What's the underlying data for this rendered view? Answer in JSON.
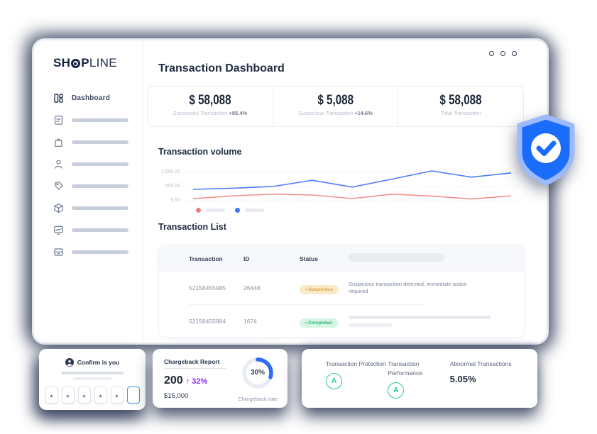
{
  "window": {
    "title": "Transaction Dashboard"
  },
  "sidebar": {
    "logo": {
      "part1": "SH",
      "part2": "P",
      "part3": "LINE"
    },
    "active_item": {
      "label": "Dashboard"
    },
    "placeholder_count": 7
  },
  "stats": [
    {
      "value": "$ 58,088",
      "label": "Successful Transaction",
      "delta": "+85.4%"
    },
    {
      "value": "$ 5,088",
      "label": "Suspicious Transaction",
      "delta": "+14.6%"
    },
    {
      "value": "$ 58,088",
      "label": "Total Transaction",
      "delta": ""
    }
  ],
  "chart_section": {
    "title": "Transaction volume"
  },
  "chart_data": {
    "type": "line",
    "title": "Transaction volume",
    "x": [
      1,
      2,
      3,
      4,
      5,
      6,
      7,
      8,
      9
    ],
    "series": [
      {
        "name": "series-blue",
        "color": "#4e7df7",
        "values": [
          400,
          440,
          500,
          720,
          480,
          760,
          1050,
          830,
          980
        ]
      },
      {
        "name": "series-red",
        "color": "#f2918e",
        "values": [
          70,
          170,
          230,
          200,
          75,
          230,
          165,
          60,
          170
        ]
      }
    ],
    "yticks": [
      "1,000.00",
      "500.00",
      "0.00"
    ],
    "ytick_values": [
      1000,
      500,
      0
    ],
    "ylim": [
      0,
      1100
    ],
    "grid": "dashed-horizontal",
    "legend_position": "bottom-left",
    "legend_labels_placeholder": true
  },
  "table": {
    "title": "Transaction List",
    "columns": [
      "Transaction",
      "ID",
      "Status"
    ],
    "rows": [
      {
        "transaction": "52158455985",
        "id": "26448",
        "status": "• Suspicious",
        "note": "Suspicious transaction detected, immediate action required"
      },
      {
        "transaction": "52158455984",
        "id": "1674",
        "status": "• Completed",
        "note": ""
      }
    ]
  },
  "shield": {
    "meaning": "verified-protection",
    "color": "#1a6dfb"
  },
  "otp_card": {
    "title": "Confirm is you",
    "digits": [
      "*",
      "*",
      "*",
      "*",
      "*",
      ""
    ]
  },
  "chargeback_card": {
    "title": "Chargeback Report",
    "count": "200",
    "delta": "↑ 32%",
    "amount": "$15,000",
    "rate_text": "30%",
    "rate_value": 30,
    "rate_label": "Chargeback rate",
    "arc_color": "#2e6bf6"
  },
  "score_card": {
    "items": [
      {
        "label": "Transaction Protection",
        "grade": "A"
      },
      {
        "label": "Transaction Performance",
        "grade": "A"
      },
      {
        "label": "Abnormal Transactions",
        "value": "5.05%"
      }
    ]
  },
  "colors": {
    "navy_text": "#222d42",
    "gray_text": "#8b94a4",
    "badge_suspicious_bg": "#fbeac7",
    "badge_suspicious_text": "#dfa23e",
    "badge_completed_bg": "#d5f4e3",
    "badge_completed_text": "#2cb77a",
    "purple_accent": "#8b2ff0",
    "green_grade": "#2ecb8d",
    "shield_blue": "#1a6dfb"
  }
}
